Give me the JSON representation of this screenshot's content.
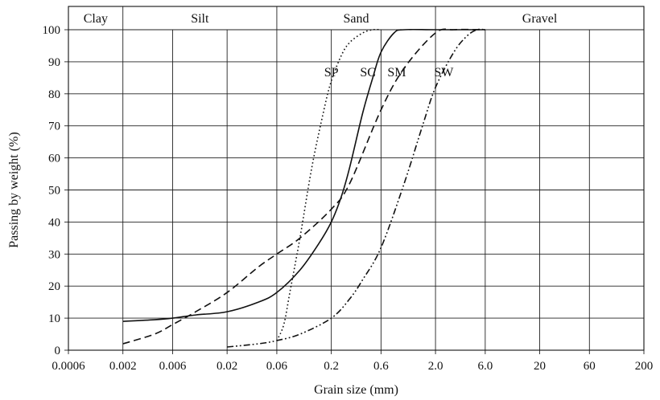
{
  "chart_data": {
    "type": "line",
    "title": "",
    "xlabel": "Grain size (mm)",
    "ylabel": "Passing by weight (%)",
    "x_scale": "log",
    "xlim": [
      0.0006,
      200
    ],
    "ylim": [
      0,
      100
    ],
    "grid": true,
    "x_ticks": [
      0.0006,
      0.002,
      0.006,
      0.02,
      0.06,
      0.2,
      0.6,
      2.0,
      6.0,
      20,
      60,
      200
    ],
    "x_tick_labels": [
      "0.0006",
      "0.002",
      "0.006",
      "0.02",
      "0.06",
      "0.2",
      "0.6",
      "2.0",
      "6.0",
      "20",
      "60",
      "200"
    ],
    "y_ticks": [
      0,
      10,
      20,
      30,
      40,
      50,
      60,
      70,
      80,
      90,
      100
    ],
    "y_tick_labels": [
      "0",
      "10",
      "20",
      "30",
      "40",
      "50",
      "60",
      "70",
      "80",
      "90",
      "100"
    ],
    "bands": [
      {
        "label": "Clay",
        "from": 0.0006,
        "to": 0.002
      },
      {
        "label": "Silt",
        "from": 0.002,
        "to": 0.06
      },
      {
        "label": "Sand",
        "from": 0.06,
        "to": 2.0
      },
      {
        "label": "Gravel",
        "from": 2.0,
        "to": 200
      }
    ],
    "series": [
      {
        "name": "SP",
        "dash": "dotted",
        "x": [
          0.06,
          0.07,
          0.08,
          0.1,
          0.13,
          0.17,
          0.2,
          0.25,
          0.3,
          0.4,
          0.5,
          0.6
        ],
        "y": [
          3,
          8,
          18,
          35,
          57,
          75,
          84,
          92,
          96,
          99,
          100,
          100
        ]
      },
      {
        "name": "SC",
        "dash": "solid",
        "x": [
          0.002,
          0.004,
          0.006,
          0.01,
          0.02,
          0.04,
          0.06,
          0.1,
          0.15,
          0.2,
          0.25,
          0.3,
          0.4,
          0.5,
          0.6,
          0.8,
          1.0,
          2.0,
          6.0
        ],
        "y": [
          9,
          9.5,
          10,
          11,
          12,
          15,
          18,
          25,
          33,
          40,
          48,
          57,
          74,
          85,
          93,
          99,
          100,
          100,
          100
        ]
      },
      {
        "name": "SM",
        "dash": "dashed",
        "x": [
          0.002,
          0.004,
          0.006,
          0.01,
          0.02,
          0.04,
          0.06,
          0.1,
          0.2,
          0.3,
          0.6,
          1.0,
          2.0,
          3.0,
          6.0
        ],
        "y": [
          2,
          5,
          8,
          12,
          18,
          26,
          30,
          35,
          44,
          52,
          75,
          88,
          99,
          100,
          100
        ]
      },
      {
        "name": "SW",
        "dash": "dashdotdot",
        "x": [
          0.02,
          0.04,
          0.06,
          0.1,
          0.2,
          0.3,
          0.4,
          0.6,
          1.0,
          1.5,
          2.0,
          3.0,
          4.0,
          5.0,
          6.0
        ],
        "y": [
          1,
          2,
          3,
          5,
          10,
          16,
          22,
          32,
          52,
          70,
          82,
          93,
          98,
          100,
          100
        ]
      }
    ],
    "series_labels": [
      {
        "name": "SP",
        "x": 0.2,
        "y": 84
      },
      {
        "name": "SC",
        "x": 0.45,
        "y": 84
      },
      {
        "name": "SM",
        "x": 0.85,
        "y": 84
      },
      {
        "name": "SW",
        "x": 2.4,
        "y": 84
      }
    ]
  }
}
